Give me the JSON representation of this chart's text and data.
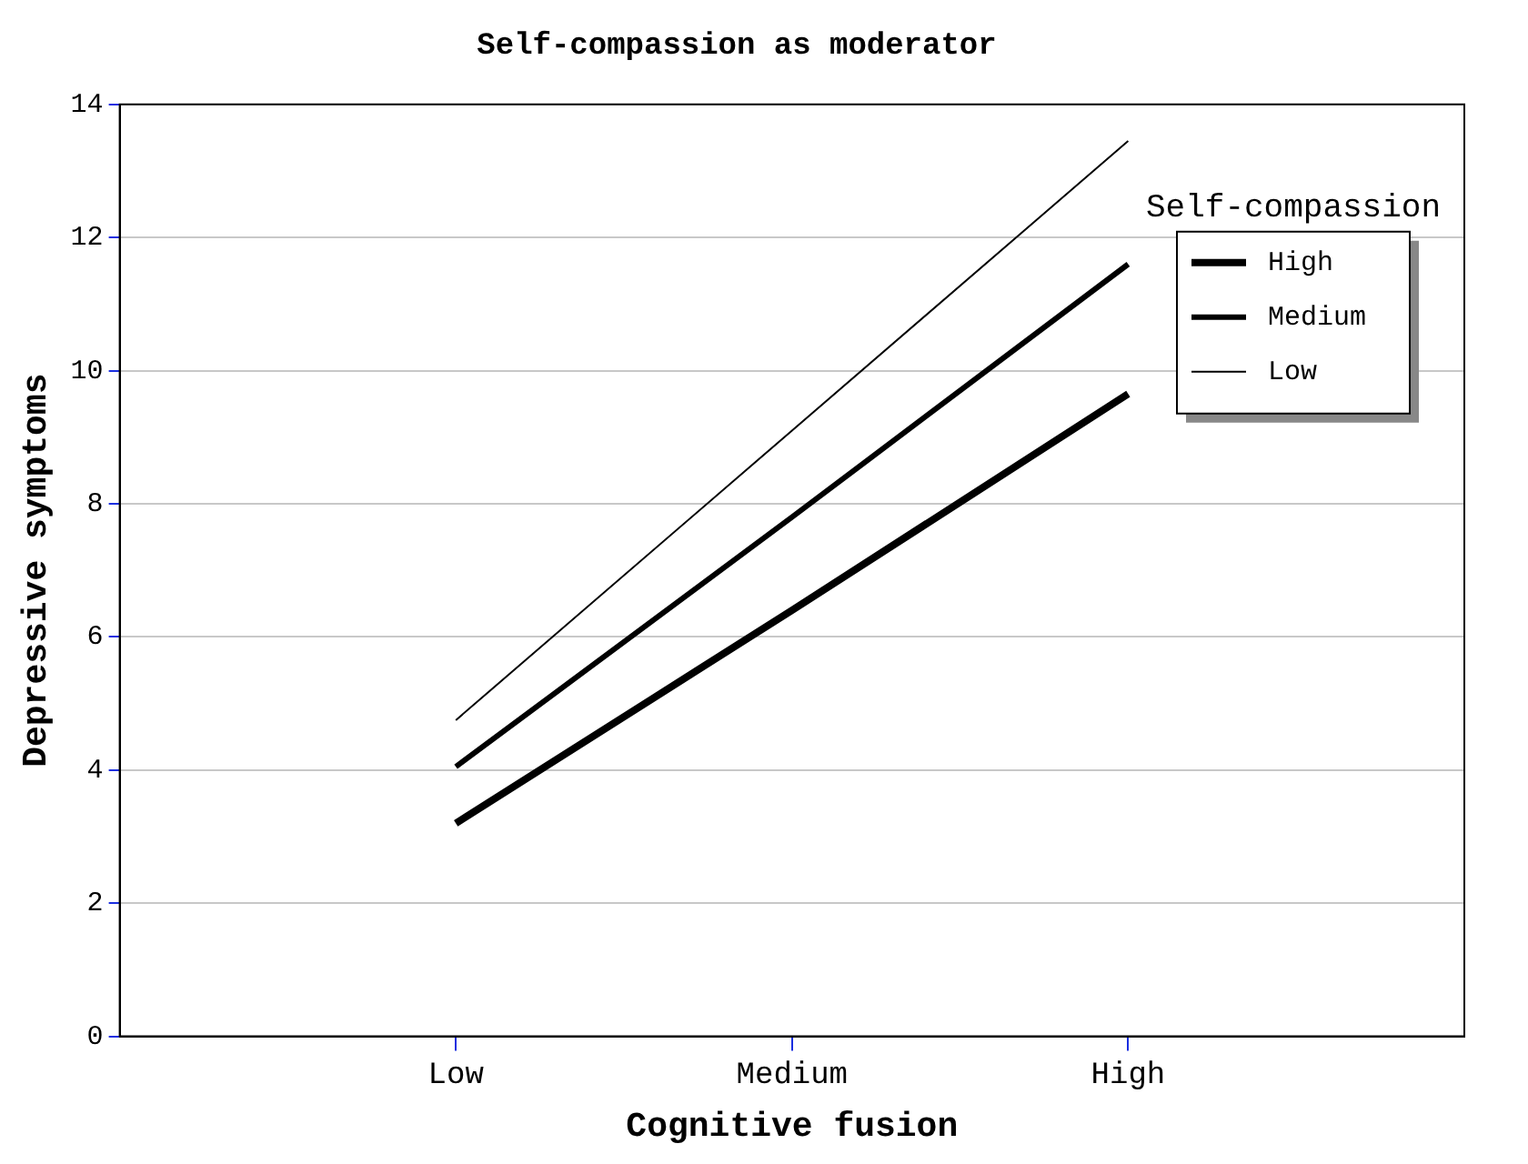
{
  "chart_data": {
    "type": "line",
    "title": "Self-compassion as moderator",
    "xlabel": "Cognitive fusion",
    "ylabel": "Depressive symptoms",
    "legend_title": "Self-compassion",
    "categories": [
      null,
      "Low",
      "Medium",
      "High",
      null
    ],
    "series": [
      {
        "name": "High",
        "color": "#000000",
        "values": [
          null,
          3.2,
          6.4,
          9.65,
          null
        ]
      },
      {
        "name": "Medium",
        "color": "#000000",
        "values": [
          null,
          4.05,
          7.8,
          11.6,
          null
        ]
      },
      {
        "name": "Low",
        "color": "#000000",
        "values": [
          null,
          4.75,
          9.1,
          13.45,
          null
        ]
      }
    ],
    "ylim": [
      0,
      14
    ],
    "yticks": [
      0,
      2,
      4,
      6,
      8,
      10,
      12,
      14
    ],
    "grid": "y",
    "legend": "top right",
    "marker": "none",
    "line_style": "solid"
  }
}
